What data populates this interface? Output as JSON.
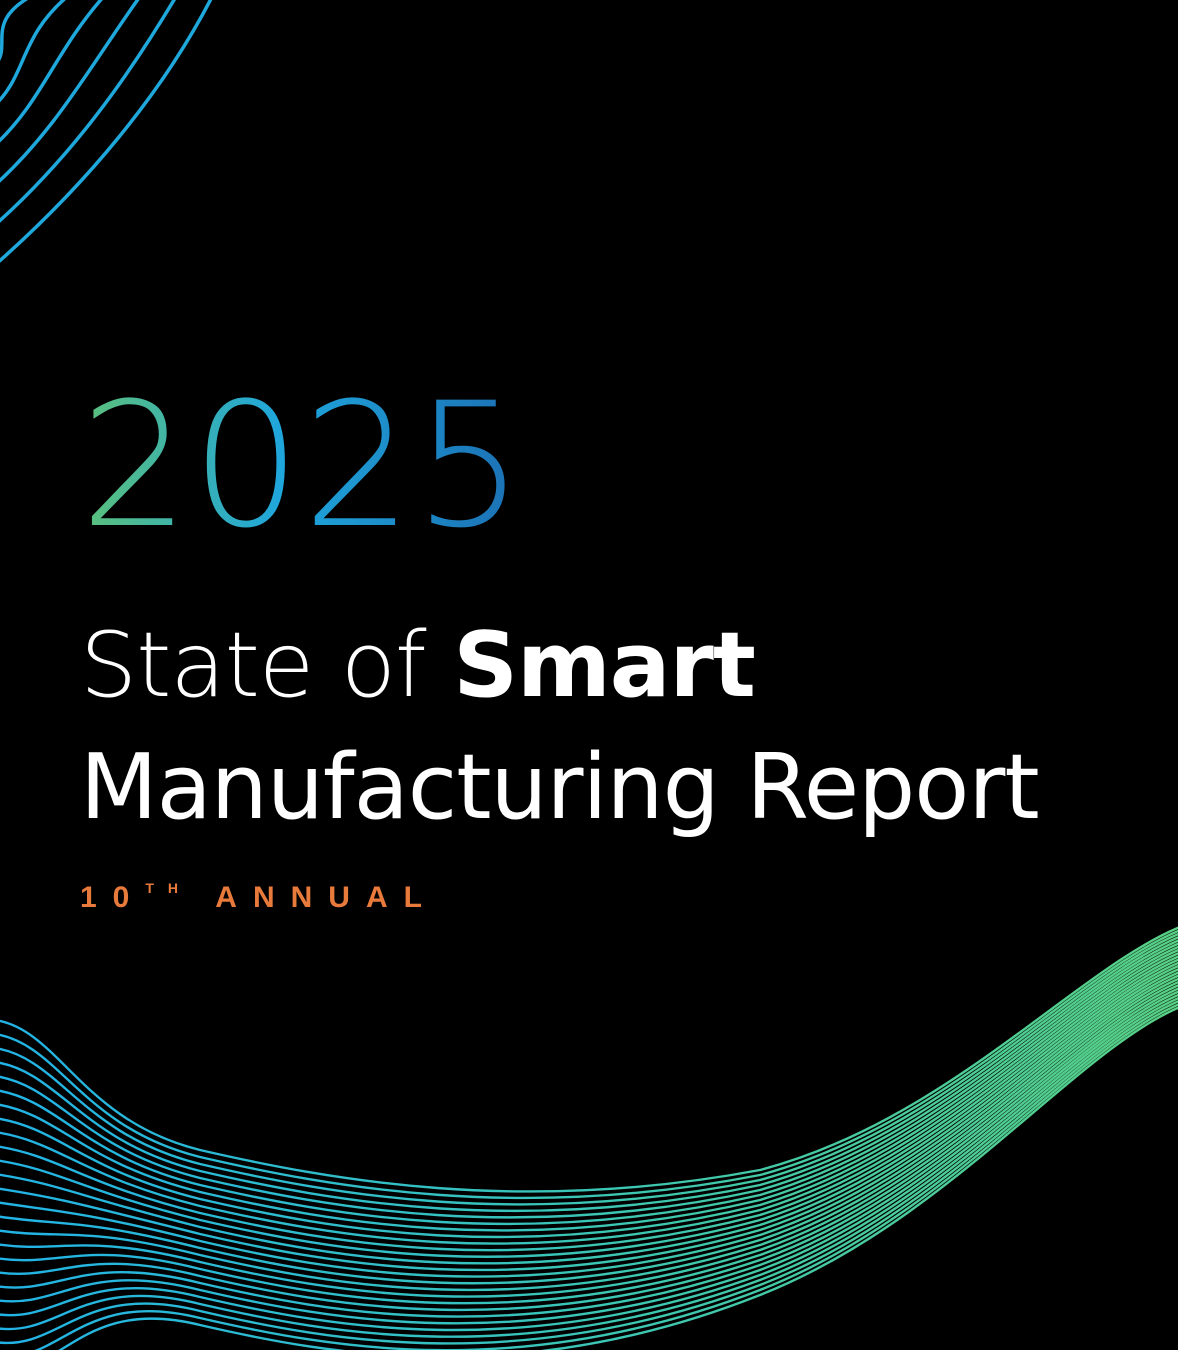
{
  "cover": {
    "year": "2025",
    "title_light": "State of",
    "title_bold": "Smart",
    "title_line2": "Manufacturing Report",
    "edition_number": "10",
    "edition_suffix": "TH",
    "edition_label": "ANNUAL"
  },
  "colors": {
    "background": "#000000",
    "year_gradient": [
      "#5cc07a",
      "#1fa6dc",
      "#1b6fb3"
    ],
    "title": "#ffffff",
    "edition": "#e87a3c",
    "wave_start": "#22b3e6",
    "wave_end": "#58d184"
  }
}
